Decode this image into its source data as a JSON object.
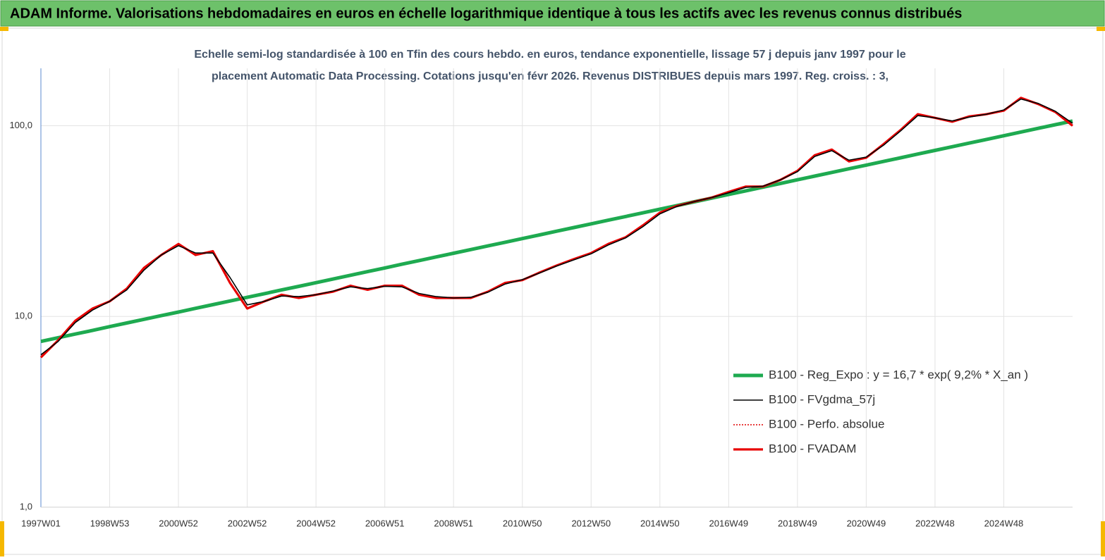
{
  "header": {
    "title": "ADAM Informe. Valorisations hebdomadaires en euros en échelle logarithmique identique à tous les actifs avec les revenus connus distribués"
  },
  "chart_data": {
    "type": "line",
    "title": "Echelle semi-log standardisée à 100 en Tfin des cours hebdo. en euros, tendance exponentielle, lissage 57 j depuis janv 1997 pour le",
    "subtitle": "placement Automatic Data Processing. Cotations jusqu'en févr 2026. Revenus DISTRIBUES depuis mars 1997. Reg. croiss. : 3,",
    "log_scale": true,
    "grid": true,
    "legend": "right",
    "x": [
      "1997W01",
      null,
      null,
      null,
      "1998W53",
      null,
      null,
      null,
      "2000W52",
      null,
      null,
      null,
      "2002W52",
      null,
      null,
      null,
      "2004W52",
      null,
      null,
      null,
      "2006W51",
      null,
      null,
      null,
      "2008W51",
      null,
      null,
      null,
      "2010W50",
      null,
      null,
      null,
      "2012W50",
      null,
      null,
      null,
      "2014W50",
      null,
      null,
      null,
      "2016W49",
      null,
      null,
      null,
      "2018W49",
      null,
      null,
      null,
      "2020W49",
      null,
      null,
      null,
      "2022W48",
      null,
      null,
      null,
      "2024W48",
      null,
      null,
      null,
      null
    ],
    "ylim": [
      1,
      200
    ],
    "yticks": [
      {
        "value": 1,
        "label": "1,0"
      },
      {
        "value": 10,
        "label": "10,0"
      },
      {
        "value": 100,
        "label": "100,0"
      }
    ],
    "series": [
      {
        "name": "B100 - Reg_Expo : y = 16,7 *  exp( 9,2% *  X_an )",
        "color": "#1eaa50",
        "values": [
          7.4,
          7.74,
          8.09,
          8.45,
          8.84,
          9.24,
          9.66,
          10.1,
          10.55,
          11.03,
          11.53,
          12.05,
          12.6,
          13.17,
          13.77,
          14.39,
          15.04,
          15.72,
          16.44,
          17.18,
          17.96,
          18.78,
          19.63,
          20.52,
          21.45,
          22.42,
          23.44,
          24.5,
          25.61,
          26.77,
          27.99,
          29.26,
          30.58,
          31.97,
          33.42,
          34.93,
          36.52,
          38.17,
          39.9,
          41.71,
          43.6,
          45.58,
          47.65,
          49.81,
          52.07,
          54.43,
          56.9,
          59.48,
          62.17,
          65,
          67.94,
          71.02,
          74.24,
          77.61,
          81.13,
          84.81,
          88.66,
          92.68,
          96.88,
          101.3,
          105.9
        ]
      },
      {
        "name": "B100 - FVgdma_57j",
        "color": "#000000",
        "values": [
          6.3,
          7.4,
          9.3,
          10.8,
          12,
          13.8,
          17.5,
          21,
          23.5,
          21.5,
          21.5,
          16,
          11.5,
          12,
          12.8,
          12.7,
          13,
          13.6,
          14.3,
          14,
          14.4,
          14.3,
          13.2,
          12.7,
          12.5,
          12.6,
          13.4,
          14.8,
          15.6,
          16.9,
          18.4,
          19.8,
          21.3,
          23.7,
          25.8,
          29.5,
          34.5,
          37.8,
          40,
          42,
          44.5,
          47.5,
          48.2,
          52,
          57.5,
          69,
          74,
          66,
          68.5,
          79,
          94,
          113,
          110,
          106,
          111,
          115,
          121,
          138,
          131,
          119,
          103
        ]
      },
      {
        "name": "B100 - Perfo. absolue",
        "color": "#e00000",
        "dotted": true,
        "values": [
          6.1,
          7.5,
          9.5,
          11,
          12,
          14,
          18,
          21,
          24,
          21,
          22,
          15,
          11,
          12,
          13,
          12.5,
          13,
          13.5,
          14.5,
          13.8,
          14.5,
          14.5,
          13,
          12.5,
          12.5,
          12.5,
          13.5,
          15,
          15.5,
          17,
          18.5,
          20,
          21.5,
          24,
          26,
          30,
          35,
          38,
          40,
          42,
          45,
          48,
          48,
          52,
          58,
          70,
          75,
          65,
          68,
          80,
          95,
          115,
          110,
          105,
          112,
          115,
          120,
          140,
          130,
          118,
          100
        ]
      },
      {
        "name": "B100 - FVADAM",
        "color": "#e80000",
        "values": [
          6.1,
          7.5,
          9.5,
          11,
          12,
          14,
          18,
          21,
          24,
          21,
          22,
          15,
          11,
          12,
          13,
          12.5,
          13,
          13.5,
          14.5,
          13.8,
          14.5,
          14.5,
          13,
          12.5,
          12.5,
          12.5,
          13.5,
          15,
          15.5,
          17,
          18.5,
          20,
          21.5,
          24,
          26,
          30,
          35,
          38,
          40,
          42,
          45,
          48,
          48,
          52,
          58,
          70,
          75,
          65,
          68,
          80,
          95,
          115,
          110,
          105,
          112,
          115,
          120,
          140,
          130,
          118,
          100
        ]
      }
    ]
  }
}
